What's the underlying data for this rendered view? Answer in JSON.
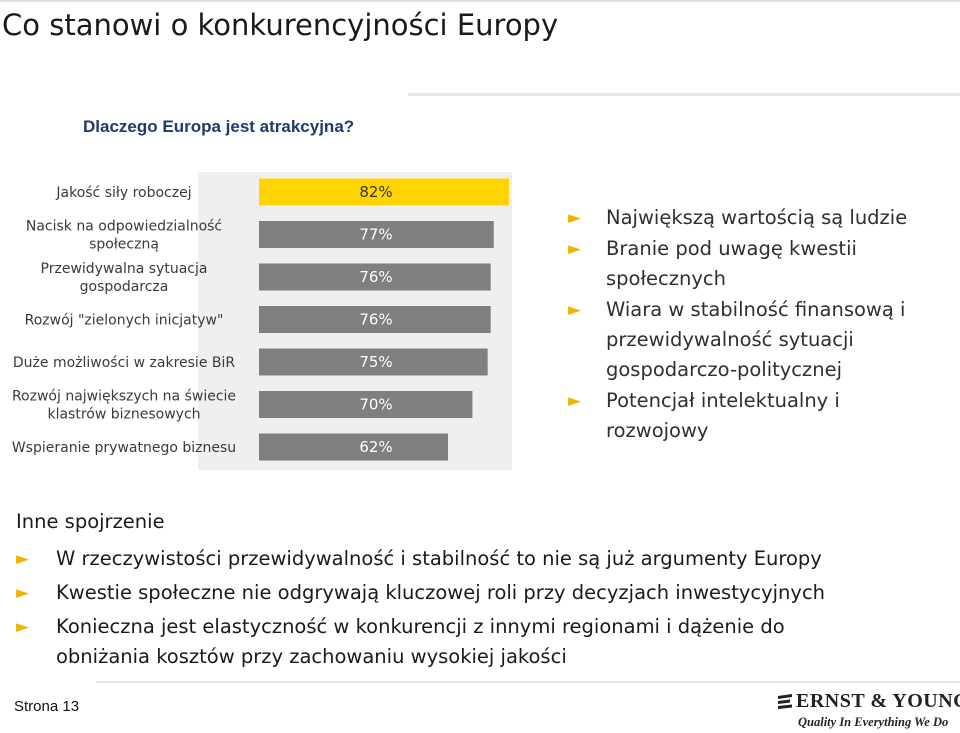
{
  "title": "Co stanowi o konkurencyjności Europy",
  "subtitle": "Dlaczego Europa jest atrakcyjna?",
  "chart_data": {
    "type": "bar",
    "orientation": "horizontal",
    "categories": [
      "Jakość siły roboczej",
      "Nacisk na odpowiedzialność społeczną",
      "Przewidywalna sytuacja gospodarcza",
      "Rozwój \"zielonych inicjatyw\"",
      "Duże możliwości w zakresie BiR",
      "Rozwój największych na świecie klastrów biznesowych",
      "Wspieranie prywatnego biznesu"
    ],
    "category_lines": [
      [
        "Jakość siły roboczej"
      ],
      [
        "Nacisk na odpowiedzialność",
        "społeczną"
      ],
      [
        "Przewidywalna sytuacja",
        "gospodarcza"
      ],
      [
        "Rozwój \"zielonych inicjatyw\""
      ],
      [
        "Duże możliwości w zakresie BiR"
      ],
      [
        "Rozwój największych na świecie",
        "klastrów biznesowych"
      ],
      [
        "Wspieranie prywatnego biznesu"
      ]
    ],
    "values": [
      82,
      77,
      76,
      76,
      75,
      70,
      62
    ],
    "value_labels": [
      "82%",
      "77%",
      "76%",
      "76%",
      "75%",
      "70%",
      "62%"
    ],
    "unit": "%",
    "highlight_index": 0,
    "colors": {
      "highlight": "#FFD400",
      "bar": "#7f7f7f",
      "panel": "#efefef"
    }
  },
  "right_bullets": [
    "Największą wartością są ludzie",
    "Branie pod uwagę kwestii społecznych",
    "Wiara w stabilność finansową i przewidywalność sytuacji gospodarczo-politycznej",
    "Potencjał intelektualny i rozwojowy"
  ],
  "right_bullets_lines": [
    [
      "Największą wartością są ludzie"
    ],
    [
      "Branie pod uwagę kwestii",
      "społecznych"
    ],
    [
      "Wiara w stabilność finansową i",
      "przewidywalność sytuacji",
      "gospodarczo-politycznej"
    ],
    [
      "Potencjał intelektualny i",
      "rozwojowy"
    ]
  ],
  "other_view": {
    "heading": "Inne spojrzenie",
    "bullets_lines": [
      [
        "W rzeczywistości przewidywalność i stabilność to nie są już argumenty Europy"
      ],
      [
        "Kwestie społeczne nie odgrywają kluczowej roli przy decyzjach inwestycyjnych"
      ],
      [
        "Konieczna jest elastyczność w konkurencji z innymi regionami i dążenie do",
        "obniżania kosztów przy zachowaniu wysokiej jakości"
      ]
    ]
  },
  "footer": {
    "page_label": "Strona 13",
    "logo_name": "ERNST & YOUNG",
    "logo_tagline": "Quality In Everything We Do"
  },
  "colors": {
    "accent": "#FFD400",
    "arrow": "#F0B400",
    "subtitle": "#1F3A6E"
  },
  "icons": {
    "bullet": "right-triangle-arrow-icon",
    "logo": "ernst-young-logo-icon"
  }
}
